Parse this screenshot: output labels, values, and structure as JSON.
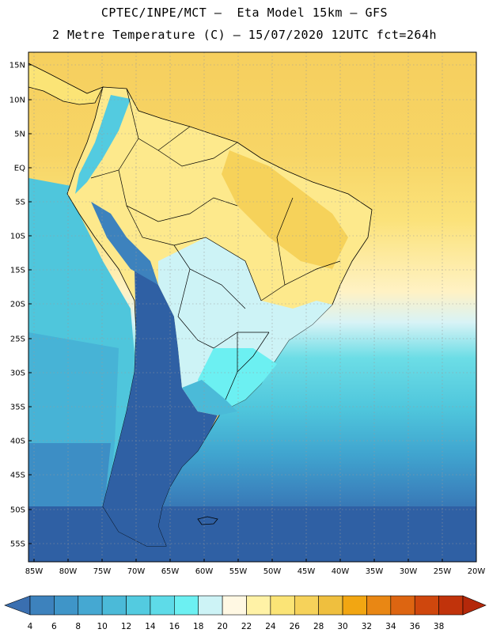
{
  "title_line1": "CPTEC/INPE/MCT –  Eta Model 15km – GFS",
  "title_line2": "2 Metre Temperature (C) – 15/07/2020 12UTC fct=264h",
  "lat_labels": [
    "15N",
    "10N",
    "5N",
    "EQ",
    "5S",
    "10S",
    "15S",
    "20S",
    "25S",
    "30S",
    "35S",
    "40S",
    "45S",
    "50S",
    "55S"
  ],
  "lon_labels": [
    "85W",
    "80W",
    "75W",
    "70W",
    "65W",
    "60W",
    "55W",
    "50W",
    "45W",
    "40W",
    "35W",
    "30W",
    "25W",
    "20W"
  ],
  "colorbar": {
    "labels": [
      "4",
      "6",
      "8",
      "10",
      "12",
      "14",
      "16",
      "18",
      "20",
      "22",
      "24",
      "26",
      "28",
      "30",
      "32",
      "34",
      "36",
      "38"
    ],
    "colors": [
      "#3a6fb0",
      "#3d82bd",
      "#3f95c8",
      "#45a8d2",
      "#4bbad8",
      "#53cbe0",
      "#5edbe8",
      "#6cf0f2",
      "#cdf3f6",
      "#fff8e3",
      "#fff2a6",
      "#fbe476",
      "#f6d25a",
      "#efbf3e",
      "#f2a612",
      "#e98714",
      "#dd6511",
      "#cf470d",
      "#c1330b",
      "#b4280a"
    ]
  }
}
